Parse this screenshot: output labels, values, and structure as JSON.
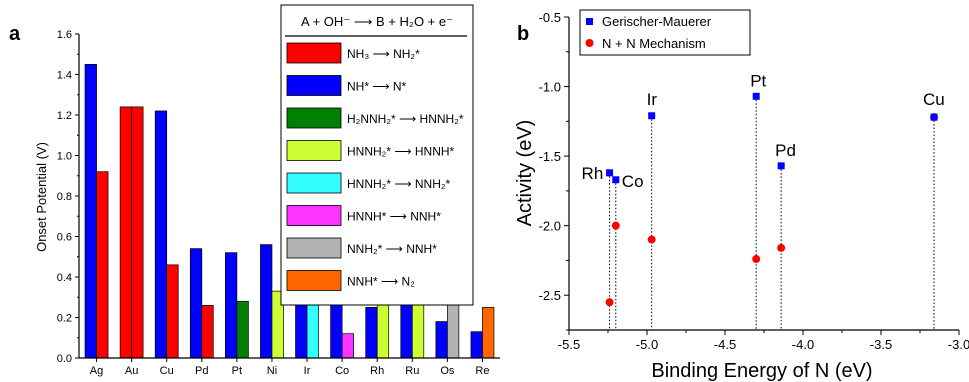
{
  "chart_data": [
    {
      "panel_label": "a",
      "type": "bar",
      "ylabel": "Onset Potential (V)",
      "xlabel": "",
      "ylim": [
        0,
        1.6
      ],
      "yticks": [
        "0.0",
        "0.2",
        "0.4",
        "0.6",
        "0.8",
        "1.0",
        "1.2",
        "1.4",
        "1.6"
      ],
      "categories": [
        "Ag",
        "Au",
        "Cu",
        "Pd",
        "Pt",
        "Ni",
        "Ir",
        "Co",
        "Rh",
        "Ru",
        "Os",
        "Re"
      ],
      "legend_title": "A + OH⁻ ⟶ B + H₂O + e⁻",
      "legend_placement": "top-right",
      "step_colors": [
        "#ff0000",
        "#0000ff",
        "#008000",
        "#ccff33",
        "#33ffff",
        "#ff33ff",
        "#b3b3b3",
        "#ff6600"
      ],
      "steps": [
        "NH₃ ⟶ NH₂*",
        "NH* ⟶ N*",
        "H₂NNH₂* ⟶ HNNH₂*",
        "HNNH₂* ⟶ HNNH*",
        "HNNH₂* ⟶ NNH₂*",
        "HNNH* ⟶ NNH*",
        "NNH₂* ⟶ NNH*",
        "NNH* ⟶ N₂"
      ],
      "bars": [
        {
          "category": "Ag",
          "left": {
            "value": 1.45,
            "step": 1
          },
          "right": {
            "value": 0.92,
            "step": 0
          }
        },
        {
          "category": "Au",
          "left": {
            "value": 1.24,
            "step": 0
          },
          "right": {
            "value": 1.24,
            "step": 0
          }
        },
        {
          "category": "Cu",
          "left": {
            "value": 1.22,
            "step": 1
          },
          "right": {
            "value": 0.46,
            "step": 0
          }
        },
        {
          "category": "Pd",
          "left": {
            "value": 0.54,
            "step": 1
          },
          "right": {
            "value": 0.26,
            "step": 0
          }
        },
        {
          "category": "Pt",
          "left": {
            "value": 0.52,
            "step": 1
          },
          "right": {
            "value": 0.28,
            "step": 2
          }
        },
        {
          "category": "Ni",
          "left": {
            "value": 0.56,
            "step": 1
          },
          "right": {
            "value": 0.33,
            "step": 3
          }
        },
        {
          "category": "Ir",
          "left": {
            "value": 0.5,
            "step": 1
          },
          "right": {
            "value": 0.32,
            "step": 4
          }
        },
        {
          "category": "Co",
          "left": {
            "value": 0.39,
            "step": 1
          },
          "right": {
            "value": 0.12,
            "step": 5
          }
        },
        {
          "category": "Rh",
          "left": {
            "value": 0.25,
            "step": 1
          },
          "right": {
            "value": 0.33,
            "step": 3
          }
        },
        {
          "category": "Ru",
          "left": {
            "value": 0.39,
            "step": 1
          },
          "right": {
            "value": 0.34,
            "step": 3
          }
        },
        {
          "category": "Os",
          "left": {
            "value": 0.18,
            "step": 1
          },
          "right": {
            "value": 0.3,
            "step": 6
          }
        },
        {
          "category": "Re",
          "left": {
            "value": 0.13,
            "step": 1
          },
          "right": {
            "value": 0.25,
            "step": 7
          }
        }
      ]
    },
    {
      "panel_label": "b",
      "type": "scatter",
      "xlabel": "Binding Energy of N (eV)",
      "ylabel": "Activity (eV)",
      "xlim": [
        -5.5,
        -3.0
      ],
      "ylim": [
        -2.75,
        -0.5
      ],
      "xticks": [
        "-5.5",
        "-5.0",
        "-4.5",
        "-4.0",
        "-3.5",
        "-3.0"
      ],
      "yticks": [
        "-2.5",
        "-2.0",
        "-1.5",
        "-1.0",
        "-0.5"
      ],
      "legend_placement": "top-left",
      "series": [
        {
          "name": "Gerischer-Mauerer",
          "marker": "square",
          "color": "#0000ff",
          "points": [
            {
              "label": "Rh",
              "x": -5.24,
              "y": -1.62
            },
            {
              "label": "Co",
              "x": -5.2,
              "y": -1.67
            },
            {
              "label": "Ir",
              "x": -4.97,
              "y": -1.21
            },
            {
              "label": "Pt",
              "x": -4.3,
              "y": -1.07
            },
            {
              "label": "Pd",
              "x": -4.14,
              "y": -1.57
            },
            {
              "label": "Cu",
              "x": -3.16,
              "y": -1.22
            }
          ]
        },
        {
          "name": "N + N Mechanism",
          "marker": "circle",
          "color": "#ff0000",
          "points": [
            {
              "label": "Rh",
              "x": -5.24,
              "y": -2.55
            },
            {
              "label": "Co",
              "x": -5.2,
              "y": -2.0
            },
            {
              "label": "Ir",
              "x": -4.97,
              "y": -2.1
            },
            {
              "label": "Pt",
              "x": -4.3,
              "y": -2.24
            },
            {
              "label": "Pd",
              "x": -4.14,
              "y": -2.16
            },
            {
              "label": "Cu",
              "x": -3.16,
              "y": -1.22
            }
          ]
        }
      ]
    }
  ]
}
